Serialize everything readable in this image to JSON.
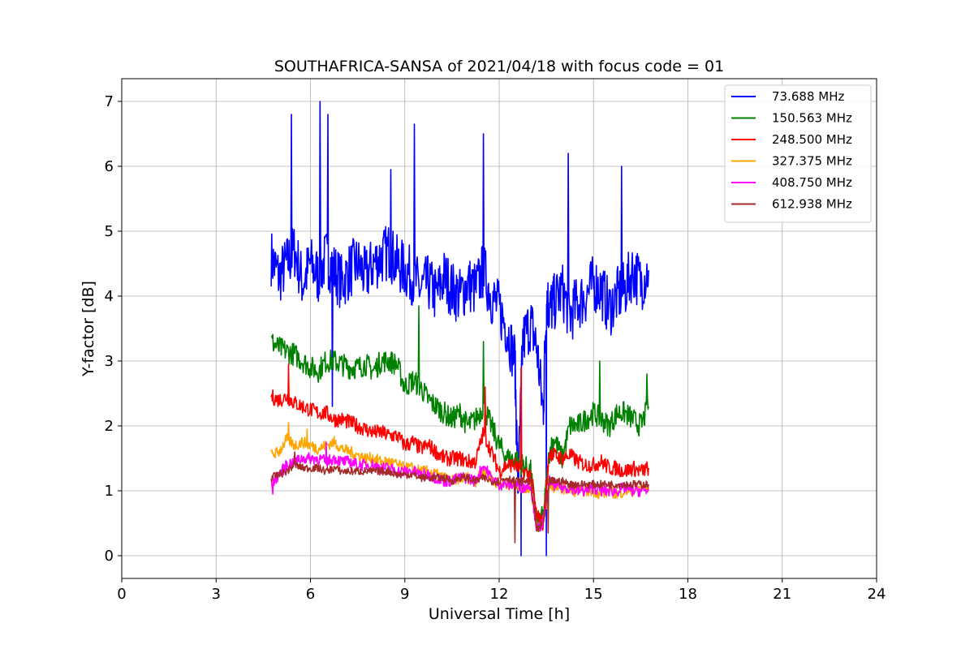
{
  "chart_data": {
    "type": "line",
    "title": "SOUTHAFRICA-SANSA of 2021/04/18 with focus code = 01",
    "xlabel": "Universal Time [h]",
    "ylabel": "Y-factor [dB]",
    "xlim": [
      0,
      24
    ],
    "ylim": [
      -0.35,
      7.35
    ],
    "xticks": [
      0,
      3,
      6,
      9,
      12,
      15,
      18,
      21,
      24
    ],
    "yticks": [
      0,
      1,
      2,
      3,
      4,
      5,
      6,
      7
    ],
    "grid": true,
    "legend_position": "top-right",
    "series": [
      {
        "name": "  73.688 MHz",
        "color": "#0000ff",
        "x": [
          4.75,
          5.0,
          5.25,
          5.5,
          5.75,
          6.0,
          6.25,
          6.5,
          6.75,
          7.0,
          7.25,
          7.5,
          7.75,
          8.0,
          8.25,
          8.5,
          8.75,
          9.0,
          9.25,
          9.5,
          9.75,
          10.0,
          10.25,
          10.5,
          10.75,
          11.0,
          11.25,
          11.5,
          11.75,
          12.0,
          12.25,
          12.5,
          12.6,
          12.75,
          13.0,
          13.2,
          13.4,
          13.5,
          13.6,
          13.75,
          14.0,
          14.25,
          14.5,
          14.75,
          15.0,
          15.25,
          15.5,
          15.75,
          16.0,
          16.25,
          16.5,
          16.75
        ],
        "y": [
          4.6,
          4.3,
          4.5,
          4.7,
          4.2,
          4.5,
          4.3,
          4.6,
          4.4,
          4.2,
          4.4,
          4.5,
          4.3,
          4.5,
          4.6,
          4.7,
          4.5,
          4.4,
          4.3,
          4.1,
          4.2,
          4.0,
          4.3,
          4.1,
          4.0,
          4.2,
          4.1,
          4.4,
          4.0,
          3.8,
          3.5,
          3.0,
          1.0,
          3.3,
          3.6,
          3.2,
          2.2,
          4.0,
          3.8,
          3.9,
          4.1,
          3.7,
          3.9,
          4.0,
          4.2,
          4.1,
          3.8,
          4.0,
          4.1,
          4.4,
          4.2,
          4.4
        ],
        "peaks": [
          [
            5.4,
            6.8
          ],
          [
            6.3,
            7.0
          ],
          [
            6.55,
            6.8
          ],
          [
            8.55,
            5.95
          ],
          [
            9.3,
            6.65
          ],
          [
            11.5,
            6.5
          ],
          [
            14.2,
            6.2
          ],
          [
            15.9,
            6.0
          ],
          [
            6.7,
            2.3
          ],
          [
            12.7,
            0.0
          ],
          [
            13.5,
            0.0
          ]
        ]
      },
      {
        "name": "150.563 MHz",
        "color": "#008000",
        "x": [
          4.75,
          5.0,
          5.25,
          5.5,
          5.75,
          6.0,
          6.25,
          6.5,
          6.75,
          7.0,
          7.25,
          7.5,
          7.75,
          8.0,
          8.25,
          8.5,
          8.75,
          9.0,
          9.25,
          9.5,
          9.75,
          10.0,
          10.25,
          10.5,
          10.75,
          11.0,
          11.25,
          11.5,
          11.75,
          12.0,
          12.25,
          12.5,
          12.75,
          13.0,
          13.2,
          13.4,
          13.6,
          13.75,
          14.0,
          14.25,
          14.5,
          14.75,
          15.0,
          15.25,
          15.5,
          15.75,
          16.0,
          16.25,
          16.5,
          16.75
        ],
        "y": [
          3.3,
          3.2,
          3.15,
          3.1,
          3.0,
          2.9,
          2.85,
          3.0,
          3.0,
          2.95,
          2.9,
          2.9,
          2.95,
          2.85,
          3.0,
          3.0,
          2.95,
          2.6,
          2.7,
          2.6,
          2.4,
          2.3,
          2.2,
          2.1,
          2.2,
          2.0,
          2.1,
          2.3,
          2.0,
          1.7,
          1.5,
          1.5,
          1.4,
          1.3,
          0.5,
          0.6,
          1.6,
          1.8,
          1.5,
          2.0,
          2.0,
          2.1,
          2.2,
          2.1,
          2.0,
          2.2,
          2.2,
          2.1,
          2.0,
          2.3
        ],
        "peaks": [
          [
            9.45,
            3.85
          ],
          [
            11.5,
            3.3
          ],
          [
            15.2,
            3.0
          ],
          [
            16.7,
            2.8
          ]
        ]
      },
      {
        "name": "248.500 MHz",
        "color": "#ff0000",
        "x": [
          4.75,
          5.0,
          5.25,
          5.5,
          5.75,
          6.0,
          6.25,
          6.5,
          6.75,
          7.0,
          7.25,
          7.5,
          7.75,
          8.0,
          8.25,
          8.5,
          8.75,
          9.0,
          9.25,
          9.5,
          9.75,
          10.0,
          10.25,
          10.5,
          10.75,
          11.0,
          11.25,
          11.5,
          11.75,
          12.0,
          12.25,
          12.5,
          12.75,
          13.0,
          13.2,
          13.4,
          13.6,
          13.75,
          14.0,
          14.25,
          14.5,
          14.75,
          15.0,
          15.25,
          15.5,
          15.75,
          16.0,
          16.25,
          16.5,
          16.75
        ],
        "y": [
          2.45,
          2.4,
          2.45,
          2.35,
          2.3,
          2.25,
          2.2,
          2.2,
          2.1,
          2.1,
          2.05,
          2.0,
          1.95,
          1.9,
          1.9,
          1.85,
          1.85,
          1.7,
          1.75,
          1.65,
          1.7,
          1.6,
          1.5,
          1.5,
          1.5,
          1.45,
          1.45,
          1.9,
          1.6,
          1.3,
          1.4,
          1.4,
          1.3,
          1.25,
          0.6,
          0.5,
          1.6,
          1.55,
          1.5,
          1.55,
          1.45,
          1.4,
          1.4,
          1.45,
          1.35,
          1.35,
          1.3,
          1.35,
          1.3,
          1.35
        ],
        "peaks": [
          [
            5.3,
            2.95
          ],
          [
            11.55,
            2.6
          ],
          [
            12.7,
            2.9
          ]
        ]
      },
      {
        "name": "327.375 MHz",
        "color": "#ffa500",
        "x": [
          4.75,
          5.0,
          5.25,
          5.5,
          5.75,
          6.0,
          6.25,
          6.5,
          6.75,
          7.0,
          7.25,
          7.5,
          7.75,
          8.0,
          8.25,
          8.5,
          8.75,
          9.0,
          9.25,
          9.5,
          9.75,
          10.0,
          10.25,
          10.5,
          10.75,
          11.0,
          11.25,
          11.5,
          11.75,
          12.0,
          12.25,
          12.5,
          12.75,
          13.0,
          13.2,
          13.4,
          13.6,
          13.75,
          14.0,
          14.25,
          14.5,
          14.75,
          15.0,
          15.25,
          15.5,
          15.75,
          16.0,
          16.25,
          16.5,
          16.75
        ],
        "y": [
          1.55,
          1.6,
          1.8,
          1.7,
          1.75,
          1.7,
          1.65,
          1.7,
          1.75,
          1.65,
          1.6,
          1.55,
          1.5,
          1.5,
          1.45,
          1.45,
          1.4,
          1.35,
          1.35,
          1.3,
          1.3,
          1.25,
          1.2,
          1.15,
          1.2,
          1.2,
          1.15,
          1.3,
          1.2,
          1.1,
          1.1,
          1.1,
          1.05,
          1.05,
          0.45,
          0.5,
          1.1,
          1.05,
          1.05,
          1.0,
          1.0,
          1.0,
          1.0,
          0.95,
          1.0,
          0.95,
          1.0,
          1.0,
          1.05,
          1.05
        ],
        "peaks": [
          [
            5.3,
            2.05
          ],
          [
            5.9,
            1.95
          ]
        ]
      },
      {
        "name": "408.750 MHz",
        "color": "#ff00ff",
        "x": [
          4.75,
          5.0,
          5.25,
          5.5,
          5.75,
          6.0,
          6.25,
          6.5,
          6.75,
          7.0,
          7.25,
          7.5,
          7.75,
          8.0,
          8.25,
          8.5,
          8.75,
          9.0,
          9.25,
          9.5,
          9.75,
          10.0,
          10.25,
          10.5,
          10.75,
          11.0,
          11.25,
          11.5,
          11.75,
          12.0,
          12.25,
          12.5,
          12.75,
          13.0,
          13.2,
          13.4,
          13.6,
          13.75,
          14.0,
          14.25,
          14.5,
          14.75,
          15.0,
          15.25,
          15.5,
          15.75,
          16.0,
          16.25,
          16.5,
          16.75
        ],
        "y": [
          1.1,
          1.25,
          1.4,
          1.45,
          1.5,
          1.5,
          1.5,
          1.45,
          1.5,
          1.45,
          1.45,
          1.4,
          1.4,
          1.4,
          1.35,
          1.35,
          1.3,
          1.3,
          1.3,
          1.25,
          1.25,
          1.2,
          1.15,
          1.15,
          1.2,
          1.2,
          1.15,
          1.4,
          1.2,
          1.1,
          1.1,
          1.1,
          1.05,
          1.1,
          0.4,
          0.5,
          1.15,
          1.1,
          1.05,
          1.05,
          1.0,
          1.0,
          1.05,
          1.0,
          1.0,
          1.0,
          1.05,
          1.0,
          1.0,
          1.0
        ],
        "peaks": [
          [
            4.8,
            0.95
          ],
          [
            6.5,
            1.75
          ]
        ]
      },
      {
        "name": "612.938 MHz",
        "color": "#a52a2a",
        "x": [
          4.75,
          5.0,
          5.25,
          5.5,
          5.75,
          6.0,
          6.25,
          6.5,
          6.75,
          7.0,
          7.25,
          7.5,
          7.75,
          8.0,
          8.25,
          8.5,
          8.75,
          9.0,
          9.25,
          9.5,
          9.75,
          10.0,
          10.25,
          10.5,
          10.75,
          11.0,
          11.25,
          11.5,
          11.75,
          12.0,
          12.25,
          12.5,
          12.75,
          13.0,
          13.2,
          13.4,
          13.6,
          13.75,
          14.0,
          14.25,
          14.5,
          14.75,
          15.0,
          15.25,
          15.5,
          15.75,
          16.0,
          16.25,
          16.5,
          16.75
        ],
        "y": [
          1.2,
          1.25,
          1.3,
          1.4,
          1.35,
          1.35,
          1.35,
          1.3,
          1.35,
          1.3,
          1.3,
          1.3,
          1.3,
          1.3,
          1.3,
          1.3,
          1.25,
          1.25,
          1.25,
          1.2,
          1.2,
          1.2,
          1.2,
          1.15,
          1.2,
          1.2,
          1.15,
          1.2,
          1.15,
          1.15,
          1.2,
          1.15,
          1.15,
          1.15,
          0.4,
          0.5,
          1.15,
          1.15,
          1.15,
          1.1,
          1.1,
          1.1,
          1.1,
          1.1,
          1.1,
          1.1,
          1.1,
          1.1,
          1.1,
          1.1
        ],
        "peaks": [
          [
            5.5,
            1.6
          ],
          [
            12.5,
            0.2
          ],
          [
            13.55,
            0.35
          ]
        ]
      }
    ]
  }
}
